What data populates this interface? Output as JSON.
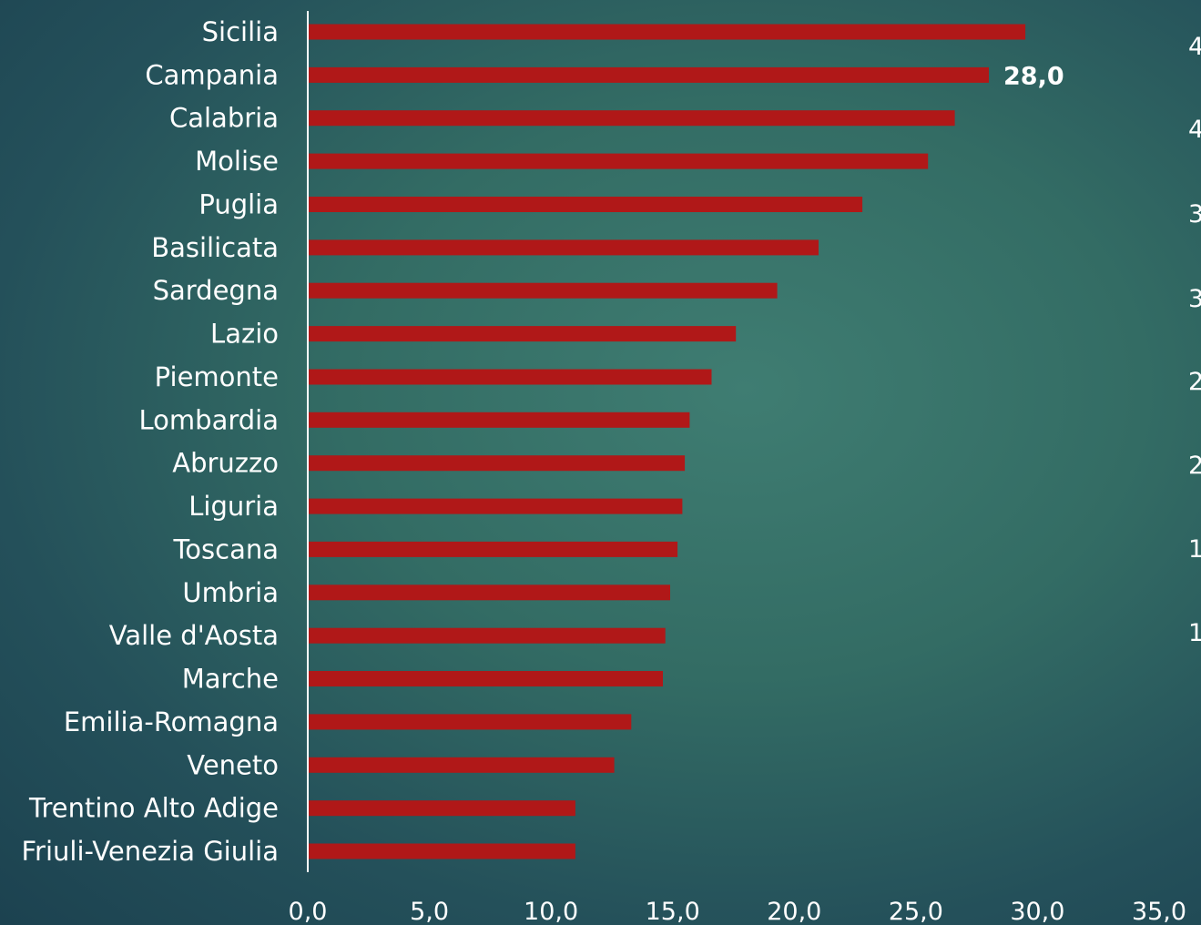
{
  "chart_data": {
    "type": "bar",
    "orientation": "horizontal",
    "categories": [
      "Sicilia",
      "Campania",
      "Calabria",
      "Molise",
      "Puglia",
      "Basilicata",
      "Sardegna",
      "Lazio",
      "Piemonte",
      "Lombardia",
      "Abruzzo",
      "Liguria",
      "Toscana",
      "Umbria",
      "Valle d'Aosta",
      "Marche",
      "Emilia-Romagna",
      "Veneto",
      "Trentino Alto Adige",
      "Friuli-Venezia Giulia"
    ],
    "values": [
      29.5,
      28.0,
      26.6,
      25.5,
      22.8,
      21.0,
      19.3,
      17.6,
      16.6,
      15.7,
      15.5,
      15.4,
      15.2,
      14.9,
      14.7,
      14.6,
      13.3,
      12.6,
      11.0,
      11.0
    ],
    "bar_color": "#b01818",
    "xlim": [
      0,
      35
    ],
    "x_ticks": [
      "0,0",
      "5,0",
      "10,0",
      "15,0",
      "20,0",
      "25,0",
      "30,0",
      "35,0"
    ],
    "data_labels": [
      {
        "category": "Campania",
        "text": "28,0"
      }
    ],
    "secondary_axis_ticks": [
      "4",
      "4",
      "3",
      "3",
      "2",
      "2",
      "1",
      "1"
    ],
    "grid": false,
    "title": "",
    "xlabel": "",
    "ylabel": ""
  }
}
